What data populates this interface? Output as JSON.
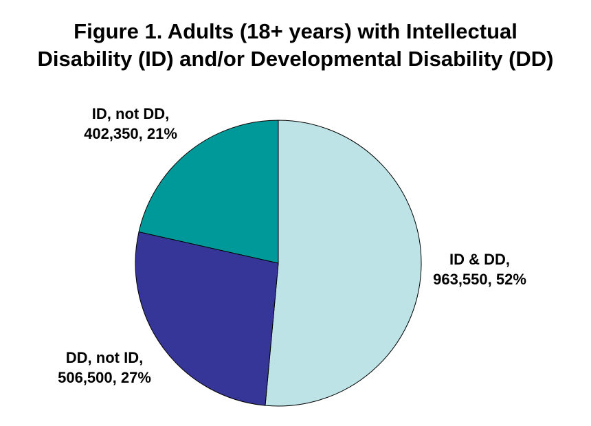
{
  "chart_data": {
    "type": "pie",
    "title": [
      "Figure 1. Adults (18+ years) with Intellectual",
      "Disability (ID) and/or Developmental Disability (DD)"
    ],
    "slices": [
      {
        "name": "ID & DD,",
        "value": 963550,
        "value_label": "963,550, 52%",
        "percent": 52,
        "color": "#bde3e6"
      },
      {
        "name": "DD, not ID,",
        "value": 506500,
        "value_label": "506,500, 27%",
        "percent": 27,
        "color": "#363699"
      },
      {
        "name": "ID, not DD,",
        "value": 402350,
        "value_label": "402,350, 21%",
        "percent": 21,
        "color": "#009999"
      }
    ]
  }
}
